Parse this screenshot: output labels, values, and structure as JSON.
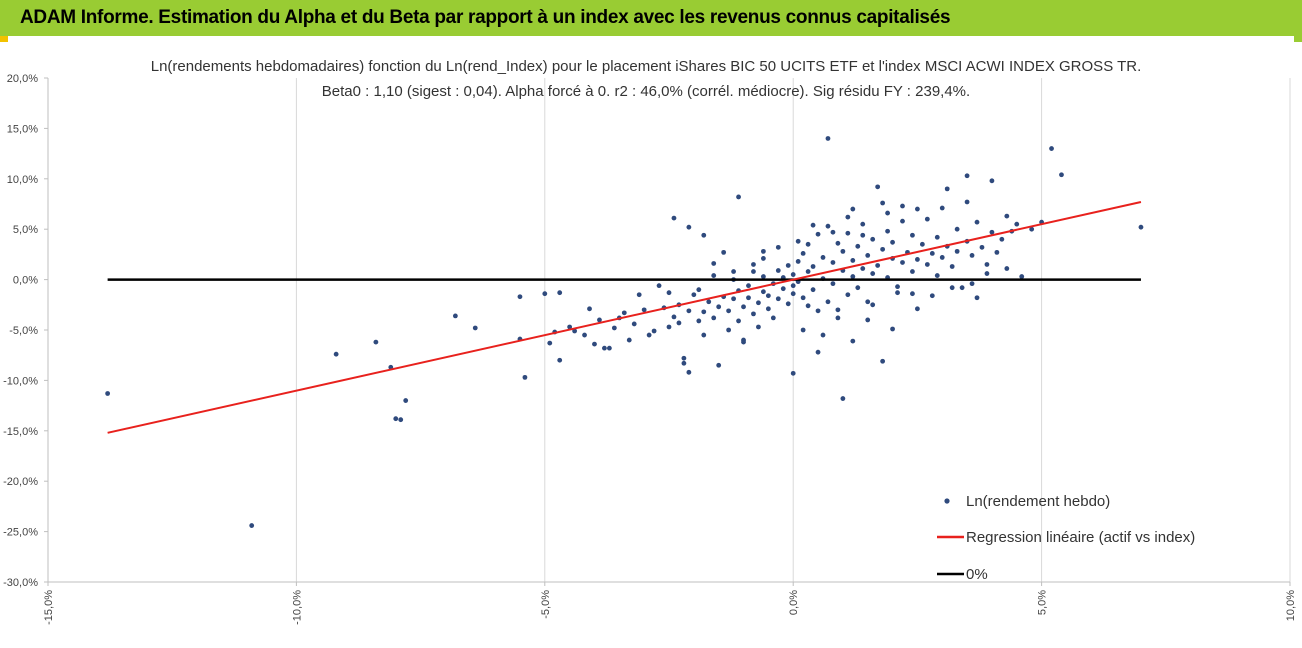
{
  "header": {
    "title": "ADAM Informe. Estimation du Alpha et du Beta par rapport à un index avec les revenus connus capitalisés"
  },
  "chart_data": {
    "type": "scatter",
    "title": "Ln(rendements hebdomadaires) fonction du Ln(rend_Index) pour le placement iShares BIC 50 UCITS ETF  et l'index MSCI ACWI INDEX GROSS TR.",
    "subtitle": "Beta0 : 1,10 (sigest : 0,04). Alpha forcé à 0. r2 : 46,0% (corrél. médiocre). Sig résidu FY : 239,4%.",
    "xlabel": "",
    "ylabel": "",
    "xlim": [
      -0.15,
      0.1
    ],
    "ylim": [
      -0.3,
      0.2
    ],
    "x_ticks": [
      -0.15,
      -0.1,
      -0.05,
      0.0,
      0.05,
      0.1
    ],
    "x_tick_labels": [
      "-15,0%",
      "-10,0%",
      "-5,0%",
      "0,0%",
      "5,0%",
      "10,0%"
    ],
    "y_ticks": [
      0.2,
      0.15,
      0.1,
      0.05,
      0.0,
      -0.05,
      -0.1,
      -0.15,
      -0.2,
      -0.25,
      -0.3
    ],
    "y_tick_labels": [
      "20,0%",
      "15,0%",
      "10,0%",
      "5,0%",
      "0,0%",
      "-5,0%",
      "-10,0%",
      "-15,0%",
      "-20,0%",
      "-25,0%",
      "-30,0%"
    ],
    "grid": {
      "vertical": true,
      "horizontal": false
    },
    "legend_position": "bottom-right",
    "series": [
      {
        "name": "Ln(rendement hebdo)",
        "kind": "scatter",
        "color": "#2f4a7d",
        "points": [
          [
            -0.138,
            -0.113
          ],
          [
            -0.109,
            -0.244
          ],
          [
            -0.092,
            -0.074
          ],
          [
            -0.084,
            -0.062
          ],
          [
            -0.081,
            -0.087
          ],
          [
            -0.08,
            -0.138
          ],
          [
            -0.079,
            -0.139
          ],
          [
            -0.078,
            -0.12
          ],
          [
            -0.068,
            -0.036
          ],
          [
            -0.064,
            -0.048
          ],
          [
            -0.055,
            -0.059
          ],
          [
            -0.055,
            -0.017
          ],
          [
            -0.054,
            -0.097
          ],
          [
            -0.05,
            -0.014
          ],
          [
            -0.049,
            -0.063
          ],
          [
            -0.048,
            -0.052
          ],
          [
            -0.047,
            -0.08
          ],
          [
            -0.047,
            -0.013
          ],
          [
            -0.045,
            -0.047
          ],
          [
            -0.044,
            -0.051
          ],
          [
            -0.042,
            -0.055
          ],
          [
            -0.041,
            -0.029
          ],
          [
            -0.04,
            -0.064
          ],
          [
            -0.039,
            -0.04
          ],
          [
            -0.038,
            -0.068
          ],
          [
            -0.037,
            -0.068
          ],
          [
            -0.036,
            -0.048
          ],
          [
            -0.035,
            -0.038
          ],
          [
            -0.034,
            -0.033
          ],
          [
            -0.033,
            -0.06
          ],
          [
            -0.032,
            -0.044
          ],
          [
            -0.031,
            -0.015
          ],
          [
            -0.03,
            -0.03
          ],
          [
            -0.029,
            -0.055
          ],
          [
            -0.028,
            -0.051
          ],
          [
            -0.027,
            -0.006
          ],
          [
            -0.026,
            -0.028
          ],
          [
            -0.025,
            -0.047
          ],
          [
            -0.025,
            -0.013
          ],
          [
            -0.024,
            -0.037
          ],
          [
            -0.023,
            -0.043
          ],
          [
            -0.023,
            -0.025
          ],
          [
            -0.022,
            -0.083
          ],
          [
            -0.022,
            -0.078
          ],
          [
            -0.021,
            -0.031
          ],
          [
            -0.021,
            -0.092
          ],
          [
            -0.02,
            -0.015
          ],
          [
            -0.019,
            -0.041
          ],
          [
            -0.019,
            -0.01
          ],
          [
            -0.018,
            -0.032
          ],
          [
            -0.018,
            -0.055
          ],
          [
            -0.017,
            -0.022
          ],
          [
            -0.016,
            -0.038
          ],
          [
            -0.016,
            0.004
          ],
          [
            -0.015,
            -0.027
          ],
          [
            -0.015,
            -0.085
          ],
          [
            -0.014,
            -0.017
          ],
          [
            -0.013,
            -0.031
          ],
          [
            -0.013,
            -0.05
          ],
          [
            -0.012,
            0.0
          ],
          [
            -0.012,
            -0.019
          ],
          [
            -0.011,
            -0.041
          ],
          [
            -0.011,
            -0.011
          ],
          [
            -0.01,
            -0.027
          ],
          [
            -0.01,
            -0.06
          ],
          [
            -0.009,
            -0.006
          ],
          [
            -0.009,
            -0.018
          ],
          [
            -0.008,
            -0.034
          ],
          [
            -0.008,
            0.008
          ],
          [
            -0.007,
            -0.023
          ],
          [
            -0.007,
            -0.047
          ],
          [
            -0.006,
            -0.012
          ],
          [
            -0.006,
            0.003
          ],
          [
            -0.005,
            -0.029
          ],
          [
            -0.005,
            -0.016
          ],
          [
            -0.004,
            -0.004
          ],
          [
            -0.004,
            -0.038
          ],
          [
            -0.003,
            0.009
          ],
          [
            -0.003,
            -0.019
          ],
          [
            -0.002,
            -0.009
          ],
          [
            -0.002,
            0.002
          ],
          [
            -0.001,
            -0.024
          ],
          [
            -0.001,
            0.014
          ],
          [
            0.0,
            -0.006
          ],
          [
            0.0,
            0.005
          ],
          [
            0.0,
            -0.014
          ],
          [
            0.001,
            0.018
          ],
          [
            0.001,
            -0.002
          ],
          [
            0.002,
            0.026
          ],
          [
            0.002,
            -0.018
          ],
          [
            0.003,
            0.008
          ],
          [
            0.003,
            0.035
          ],
          [
            0.004,
            -0.01
          ],
          [
            0.004,
            0.013
          ],
          [
            0.005,
            0.045
          ],
          [
            0.005,
            -0.031
          ],
          [
            0.006,
            0.022
          ],
          [
            0.006,
            0.001
          ],
          [
            0.007,
            0.053
          ],
          [
            0.007,
            -0.022
          ],
          [
            0.008,
            0.017
          ],
          [
            0.008,
            -0.004
          ],
          [
            0.009,
            0.036
          ],
          [
            0.009,
            -0.038
          ],
          [
            0.01,
            0.009
          ],
          [
            0.01,
            0.028
          ],
          [
            0.011,
            -0.015
          ],
          [
            0.011,
            0.046
          ],
          [
            0.012,
            0.003
          ],
          [
            0.012,
            0.019
          ],
          [
            0.013,
            0.033
          ],
          [
            0.013,
            -0.008
          ],
          [
            0.014,
            0.011
          ],
          [
            0.014,
            0.055
          ],
          [
            0.015,
            0.024
          ],
          [
            0.015,
            -0.022
          ],
          [
            0.016,
            0.04
          ],
          [
            0.016,
            0.006
          ],
          [
            0.017,
            0.092
          ],
          [
            0.017,
            0.014
          ],
          [
            0.018,
            0.03
          ],
          [
            0.018,
            -0.081
          ],
          [
            0.019,
            0.048
          ],
          [
            0.019,
            0.002
          ],
          [
            0.02,
            0.021
          ],
          [
            0.02,
            0.037
          ],
          [
            0.021,
            -0.013
          ],
          [
            0.022,
            0.017
          ],
          [
            0.022,
            0.058
          ],
          [
            0.023,
            0.027
          ],
          [
            0.024,
            0.008
          ],
          [
            0.024,
            0.044
          ],
          [
            0.025,
            0.02
          ],
          [
            0.025,
            -0.029
          ],
          [
            0.026,
            0.035
          ],
          [
            0.027,
            0.015
          ],
          [
            0.027,
            0.06
          ],
          [
            0.028,
            0.026
          ],
          [
            0.029,
            0.004
          ],
          [
            0.029,
            0.042
          ],
          [
            0.03,
            0.022
          ],
          [
            0.031,
            0.033
          ],
          [
            0.031,
            0.09
          ],
          [
            0.032,
            0.013
          ],
          [
            0.033,
            0.05
          ],
          [
            0.033,
            0.028
          ],
          [
            0.034,
            -0.008
          ],
          [
            0.035,
            0.038
          ],
          [
            0.035,
            0.103
          ],
          [
            0.036,
            0.024
          ],
          [
            0.037,
            0.057
          ],
          [
            0.037,
            -0.018
          ],
          [
            0.038,
            0.032
          ],
          [
            0.039,
            0.015
          ],
          [
            0.04,
            0.047
          ],
          [
            0.04,
            0.098
          ],
          [
            0.041,
            0.027
          ],
          [
            0.042,
            0.04
          ],
          [
            0.043,
            0.063
          ],
          [
            0.044,
            0.048
          ],
          [
            0.045,
            0.055
          ],
          [
            0.046,
            0.003
          ],
          [
            0.048,
            0.05
          ],
          [
            0.05,
            0.057
          ],
          [
            0.052,
            0.13
          ],
          [
            0.054,
            0.104
          ],
          [
            0.07,
            0.052
          ],
          [
            0.007,
            0.14
          ],
          [
            -0.011,
            0.082
          ],
          [
            0.0,
            -0.093
          ],
          [
            0.01,
            -0.118
          ],
          [
            0.005,
            -0.072
          ],
          [
            0.012,
            -0.061
          ],
          [
            0.002,
            -0.05
          ],
          [
            0.02,
            -0.049
          ],
          [
            -0.01,
            -0.062
          ],
          [
            0.015,
            -0.04
          ],
          [
            0.006,
            -0.055
          ],
          [
            -0.006,
            0.028
          ],
          [
            0.004,
            0.054
          ],
          [
            0.011,
            0.062
          ],
          [
            0.025,
            0.07
          ],
          [
            0.022,
            0.073
          ],
          [
            0.03,
            0.071
          ],
          [
            0.035,
            0.077
          ],
          [
            -0.024,
            0.061
          ],
          [
            -0.018,
            0.044
          ],
          [
            -0.021,
            0.052
          ],
          [
            -0.014,
            0.027
          ],
          [
            -0.006,
            0.021
          ],
          [
            0.001,
            0.038
          ],
          [
            0.008,
            0.047
          ],
          [
            0.014,
            0.044
          ],
          [
            0.019,
            0.066
          ],
          [
            -0.003,
            0.032
          ],
          [
            -0.016,
            0.016
          ],
          [
            -0.012,
            0.008
          ],
          [
            -0.008,
            0.015
          ],
          [
            0.003,
            -0.026
          ],
          [
            0.009,
            -0.03
          ],
          [
            0.016,
            -0.025
          ],
          [
            0.021,
            -0.007
          ],
          [
            0.024,
            -0.014
          ],
          [
            0.028,
            -0.016
          ],
          [
            0.032,
            -0.008
          ],
          [
            0.036,
            -0.004
          ],
          [
            0.039,
            0.006
          ],
          [
            0.043,
            0.011
          ],
          [
            0.012,
            0.07
          ],
          [
            0.018,
            0.076
          ]
        ]
      },
      {
        "name": "Regression linéaire (actif vs index)",
        "kind": "line",
        "color": "#e8211d",
        "x": [
          -0.138,
          0.07
        ],
        "y": [
          -0.152,
          0.077
        ]
      },
      {
        "name": "0%",
        "kind": "line",
        "color": "#000000",
        "x": [
          -0.138,
          0.07
        ],
        "y": [
          0.0,
          0.0
        ]
      }
    ]
  }
}
